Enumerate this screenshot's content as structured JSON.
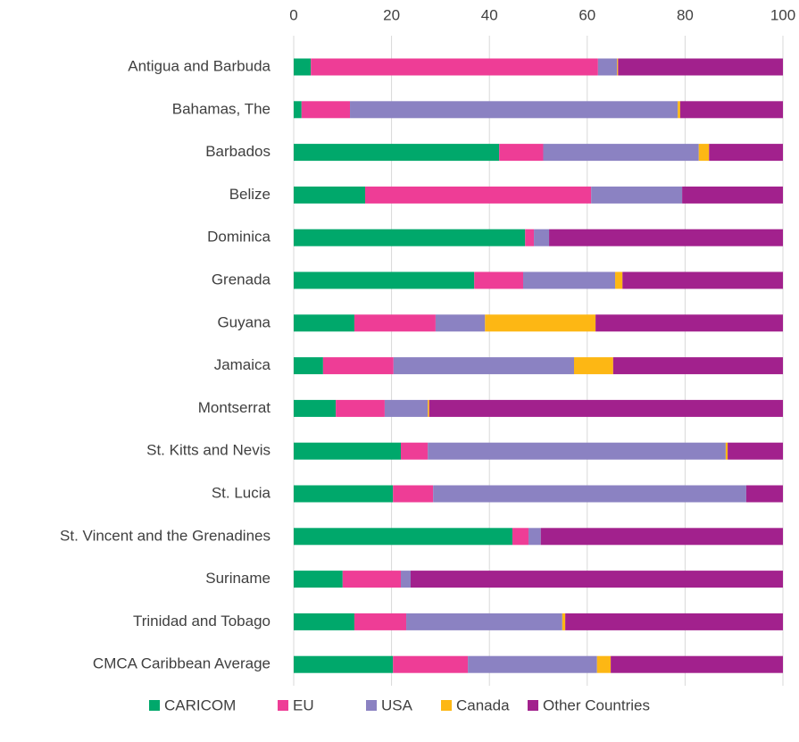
{
  "chart_data": {
    "type": "stacked_barh",
    "categories": [
      "Antigua and Barbuda",
      "Bahamas, The",
      "Barbados",
      "Belize",
      "Dominica",
      "Grenada",
      "Guyana",
      "Jamaica",
      "Montserrat",
      "St. Kitts and Nevis",
      "St. Lucia",
      "St. Vincent and the Grenadines",
      "Suriname",
      "Trinidad and Tobago",
      "CMCA Caribbean Average"
    ],
    "series": [
      {
        "name": "CARICOM",
        "color": "#00a86b",
        "values": [
          3.5,
          1.6,
          42,
          14.6,
          47.3,
          36.9,
          12.4,
          6,
          8.6,
          21.9,
          20.3,
          44.7,
          10,
          12.4,
          20.3
        ]
      },
      {
        "name": "EU",
        "color": "#ee3d96",
        "values": [
          58.7,
          9.9,
          9,
          46.2,
          1.8,
          10,
          16.6,
          14.4,
          10,
          5.5,
          8.2,
          3.3,
          11.9,
          10.6,
          15.3
        ]
      },
      {
        "name": "USA",
        "color": "#8b82c2",
        "values": [
          3.9,
          67,
          31.8,
          18.6,
          3.1,
          18.8,
          10.1,
          36.9,
          8.8,
          60.9,
          64,
          2.5,
          2,
          31.9,
          26.4
        ]
      },
      {
        "name": "Canada",
        "color": "#fdb714",
        "values": [
          0.2,
          0.5,
          2.1,
          0,
          0,
          1.5,
          22.6,
          8,
          0.3,
          0.4,
          0,
          0,
          0,
          0.6,
          2.8
        ]
      },
      {
        "name": "Other Countries",
        "color": "#a2218d",
        "values": [
          33.7,
          21,
          15.1,
          20.6,
          47.8,
          32.8,
          38.3,
          34.7,
          72.3,
          11.3,
          7.5,
          49.5,
          76.1,
          44.5,
          35.2
        ]
      }
    ],
    "xlim": [
      0,
      100
    ],
    "xticks": [
      0,
      20,
      40,
      60,
      80,
      100
    ],
    "grid": true,
    "legend": "bottom"
  }
}
